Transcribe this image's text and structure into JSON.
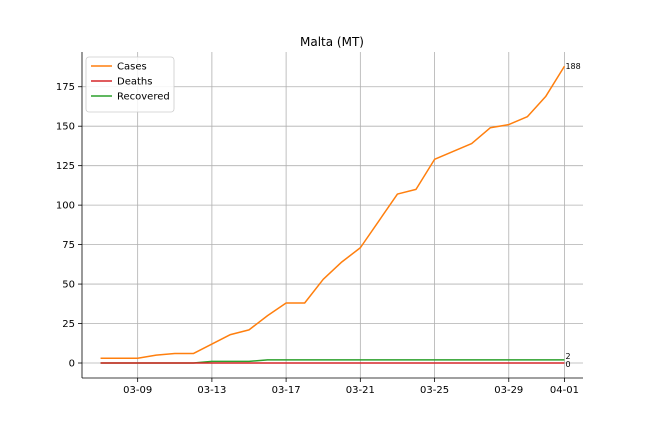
{
  "chart_data": {
    "type": "line",
    "title": "Malta (MT)",
    "xlabel": "",
    "ylabel": "",
    "x_dates": [
      "2020-03-07",
      "2020-03-08",
      "2020-03-09",
      "2020-03-10",
      "2020-03-11",
      "2020-03-12",
      "2020-03-13",
      "2020-03-14",
      "2020-03-15",
      "2020-03-16",
      "2020-03-17",
      "2020-03-18",
      "2020-03-19",
      "2020-03-20",
      "2020-03-21",
      "2020-03-22",
      "2020-03-23",
      "2020-03-24",
      "2020-03-25",
      "2020-03-26",
      "2020-03-27",
      "2020-03-28",
      "2020-03-29",
      "2020-03-30",
      "2020-03-31",
      "2020-04-01"
    ],
    "x_ticks": [
      "03-09",
      "03-13",
      "03-17",
      "03-21",
      "03-25",
      "03-29",
      "04-01"
    ],
    "y_ticks": [
      "0",
      "25",
      "50",
      "75",
      "100",
      "125",
      "150",
      "175"
    ],
    "xlim": [
      "2020-03-06",
      "2020-04-02"
    ],
    "ylim": [
      -9.5,
      197
    ],
    "grid": true,
    "legend_position": "top-left",
    "series": [
      {
        "name": "Cases",
        "color": "#ff7f0e",
        "values": [
          3,
          3,
          3,
          5,
          6,
          6,
          12,
          18,
          21,
          30,
          38,
          38,
          53,
          64,
          73,
          90,
          107,
          110,
          129,
          134,
          139,
          149,
          151,
          156,
          169,
          188
        ],
        "end_label": "188"
      },
      {
        "name": "Deaths",
        "color": "#d62728",
        "values": [
          0,
          0,
          0,
          0,
          0,
          0,
          0,
          0,
          0,
          0,
          0,
          0,
          0,
          0,
          0,
          0,
          0,
          0,
          0,
          0,
          0,
          0,
          0,
          0,
          0,
          0
        ],
        "end_label": "0"
      },
      {
        "name": "Recovered",
        "color": "#2ca02c",
        "values": [
          0,
          0,
          0,
          0,
          0,
          0,
          1,
          1,
          1,
          2,
          2,
          2,
          2,
          2,
          2,
          2,
          2,
          2,
          2,
          2,
          2,
          2,
          2,
          2,
          2,
          2
        ],
        "end_label": "2"
      }
    ]
  }
}
